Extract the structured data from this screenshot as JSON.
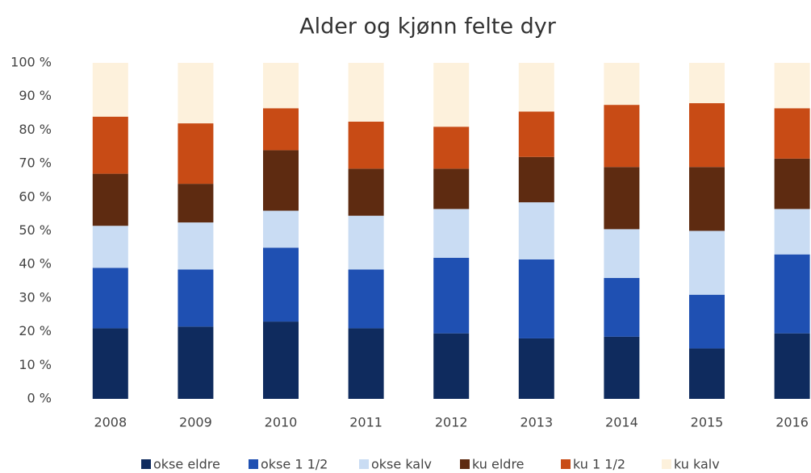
{
  "chart_data": {
    "type": "stacked_bar_100",
    "title": "Alder og kjønn felte dyr",
    "categories": [
      "2008",
      "2009",
      "2010",
      "2011",
      "2012",
      "2013",
      "2014",
      "2015",
      "2016"
    ],
    "series": [
      {
        "name": "okse eldre",
        "color": "#0f2b5e",
        "values": [
          21,
          21.5,
          23,
          21,
          19.5,
          18,
          18.5,
          15,
          19.5
        ]
      },
      {
        "name": "okse 1 1/2",
        "color": "#1f50b2",
        "values": [
          18,
          17,
          22,
          17.5,
          22.5,
          23.5,
          17.5,
          16,
          23.5
        ]
      },
      {
        "name": "okse kalv",
        "color": "#c9dcf3",
        "values": [
          12.5,
          14,
          11,
          16,
          14.5,
          17,
          14.5,
          19,
          13.5
        ]
      },
      {
        "name": "ku eldre",
        "color": "#5e2b11",
        "values": [
          15.5,
          11.5,
          18,
          14,
          12,
          13.5,
          18.5,
          19,
          15
        ]
      },
      {
        "name": "ku 1 1/2",
        "color": "#c84b15",
        "values": [
          17,
          18,
          12.5,
          14,
          12.5,
          13.5,
          18.5,
          19,
          15
        ]
      },
      {
        "name": "ku kalv",
        "color": "#fdf1dc",
        "values": [
          16,
          18,
          13.5,
          17.5,
          19,
          14.5,
          12.5,
          12,
          13.5
        ]
      }
    ],
    "ylim": [
      0,
      100
    ],
    "yticks": [
      {
        "value": 0,
        "label": "0 %"
      },
      {
        "value": 10,
        "label": "10 %"
      },
      {
        "value": 20,
        "label": "20 %"
      },
      {
        "value": 30,
        "label": "30 %"
      },
      {
        "value": 40,
        "label": "40 %"
      },
      {
        "value": 50,
        "label": "50 %"
      },
      {
        "value": 60,
        "label": "60 %"
      },
      {
        "value": 70,
        "label": "70 %"
      },
      {
        "value": 80,
        "label": "80 %"
      },
      {
        "value": 90,
        "label": "90 %"
      },
      {
        "value": 100,
        "label": "100 %"
      }
    ],
    "grid": false,
    "legend": "bottom"
  }
}
